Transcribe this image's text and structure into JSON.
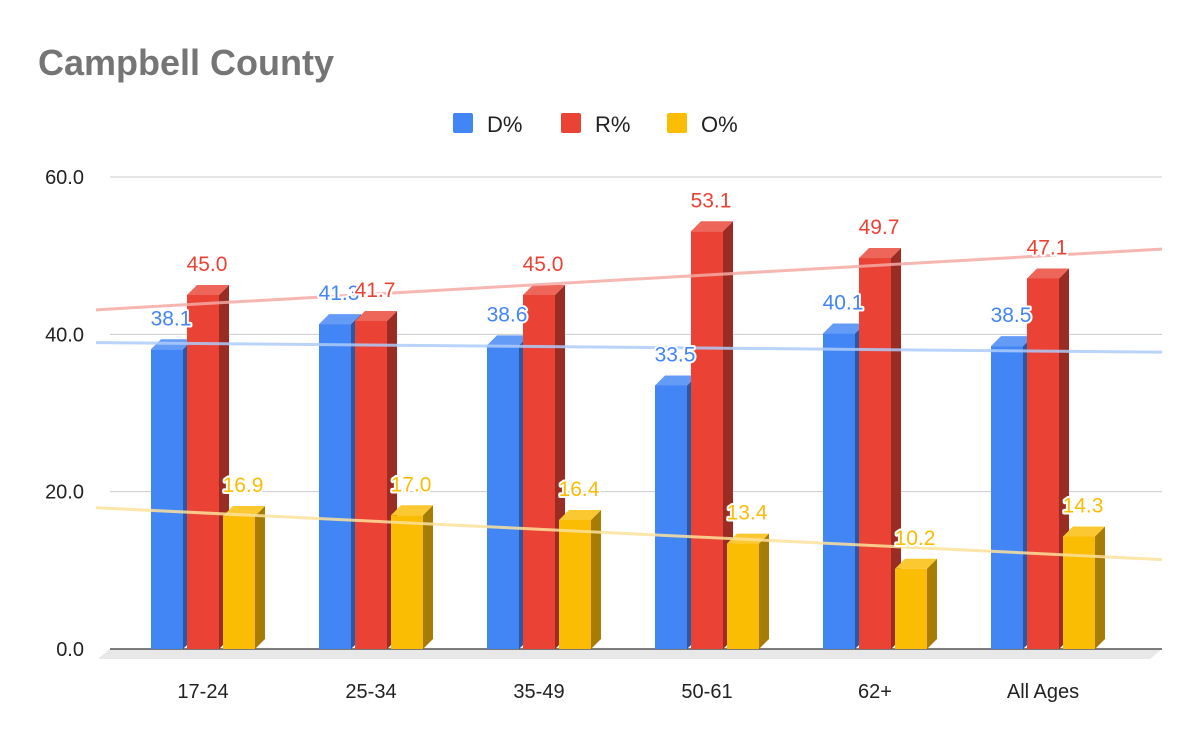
{
  "chart_data": {
    "type": "bar",
    "title": "Campbell County",
    "categories": [
      "17-24",
      "25-34",
      "35-49",
      "50-61",
      "62+",
      "All Ages"
    ],
    "series": [
      {
        "name": "D%",
        "color": "#4285f4",
        "trend_color": "#aecbfa",
        "values": [
          38.1,
          41.3,
          38.6,
          33.5,
          40.1,
          38.5
        ],
        "labels": [
          "38.1",
          "41.3",
          "38.6",
          "33.5",
          "40.1",
          "38.5"
        ]
      },
      {
        "name": "R%",
        "color": "#ea4335",
        "trend_color": "#f4a9a3",
        "values": [
          45.0,
          41.7,
          45.0,
          53.1,
          49.7,
          47.1
        ],
        "labels": [
          "45.0",
          "41.7",
          "45.0",
          "53.1",
          "49.7",
          "47.1"
        ]
      },
      {
        "name": "O%",
        "color": "#fbbc04",
        "trend_color": "#fbe29a",
        "values": [
          16.9,
          17.0,
          16.4,
          13.4,
          10.2,
          14.3
        ],
        "labels": [
          "16.9",
          "17.0",
          "16.4",
          "13.4",
          "10.2",
          "14.3"
        ]
      }
    ],
    "ylim": [
      0,
      60
    ],
    "yticks": [
      "0.0",
      "20.0",
      "40.0",
      "60.0"
    ],
    "ytick_values": [
      0,
      20,
      40,
      60
    ],
    "legend_position": "top",
    "grid": true,
    "trendlines": true,
    "style": "3d"
  }
}
